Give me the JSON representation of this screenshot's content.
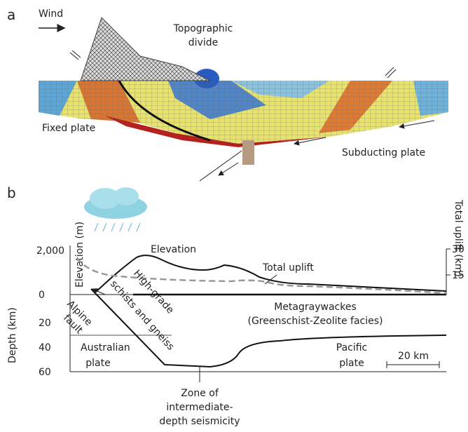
{
  "panel_a": {
    "label": "a",
    "wind": "Wind",
    "topographic_divide": [
      "Topographic",
      "divide"
    ],
    "fixed_plate": "Fixed plate",
    "subducting_plate": "Subducting plate"
  },
  "panel_b": {
    "label": "b",
    "elevation_axis": {
      "title": "Elevation (m)",
      "ticks": [
        "2,000",
        "0"
      ]
    },
    "depth_axis": {
      "title": "Depth (km)",
      "ticks": [
        "20",
        "40",
        "60"
      ]
    },
    "uplift_axis": {
      "title": "Total uplift (km)",
      "ticks": [
        "30",
        "15"
      ]
    },
    "elevation": "Elevation",
    "total_uplift": "Total uplift",
    "schists": [
      "High-grade",
      "schists and gneiss"
    ],
    "alpine_fault": [
      "Alpine",
      "fault"
    ],
    "metagraywackes": [
      "Metagraywackes",
      "(Greenschist-Zeolite facies)"
    ],
    "australian_plate": [
      "Australian",
      "plate"
    ],
    "pacific_plate": [
      "Pacific",
      "plate"
    ],
    "scale": "20 km",
    "seismicity": [
      "Zone of",
      "intermediate-",
      "depth seismicity"
    ]
  }
}
